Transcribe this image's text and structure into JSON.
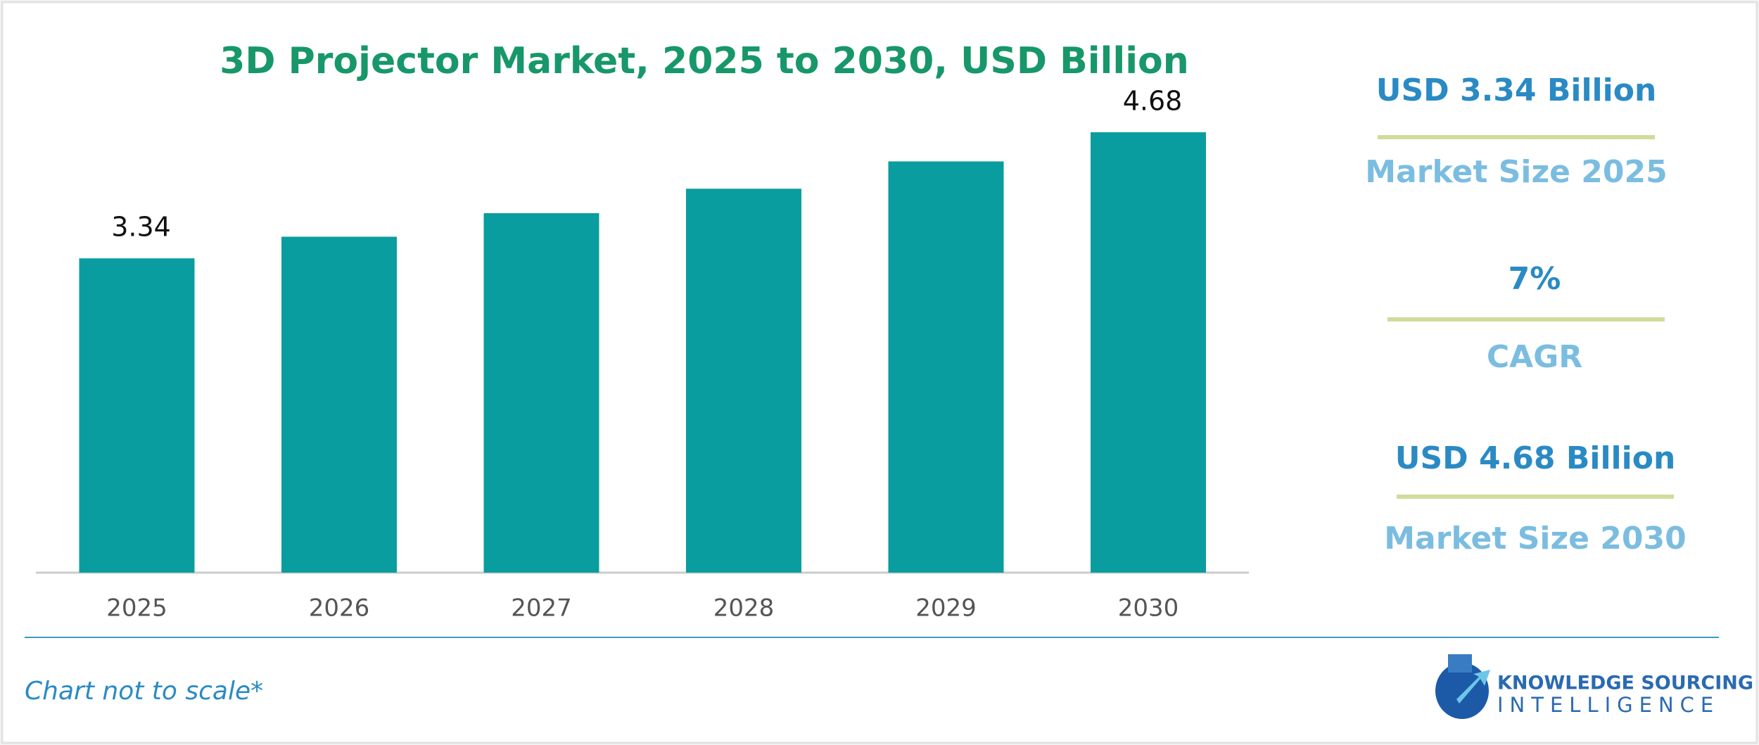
{
  "chart_data": {
    "type": "bar",
    "title": "3D Projector Market, 2025 to 2030, USD Billion",
    "categories": [
      "2025",
      "2026",
      "2027",
      "2028",
      "2029",
      "2030"
    ],
    "values": [
      3.34,
      3.57,
      3.82,
      4.08,
      4.37,
      4.68
    ],
    "value_labels": [
      "3.34",
      null,
      null,
      null,
      null,
      "4.68"
    ],
    "color": "#0a9da0"
  },
  "side_panel": [
    {
      "value": "USD 3.34 Billion",
      "label": "Market Size 2025"
    },
    {
      "value": "7%",
      "label": "CAGR"
    },
    {
      "value": "USD 4.68 Billion",
      "label": "Market Size 2030"
    }
  ],
  "footer": {
    "note": "Chart not to scale*",
    "logo_line1": "KNOWLEDGE SOURCING",
    "logo_line2": "INTELLIGENCE"
  }
}
